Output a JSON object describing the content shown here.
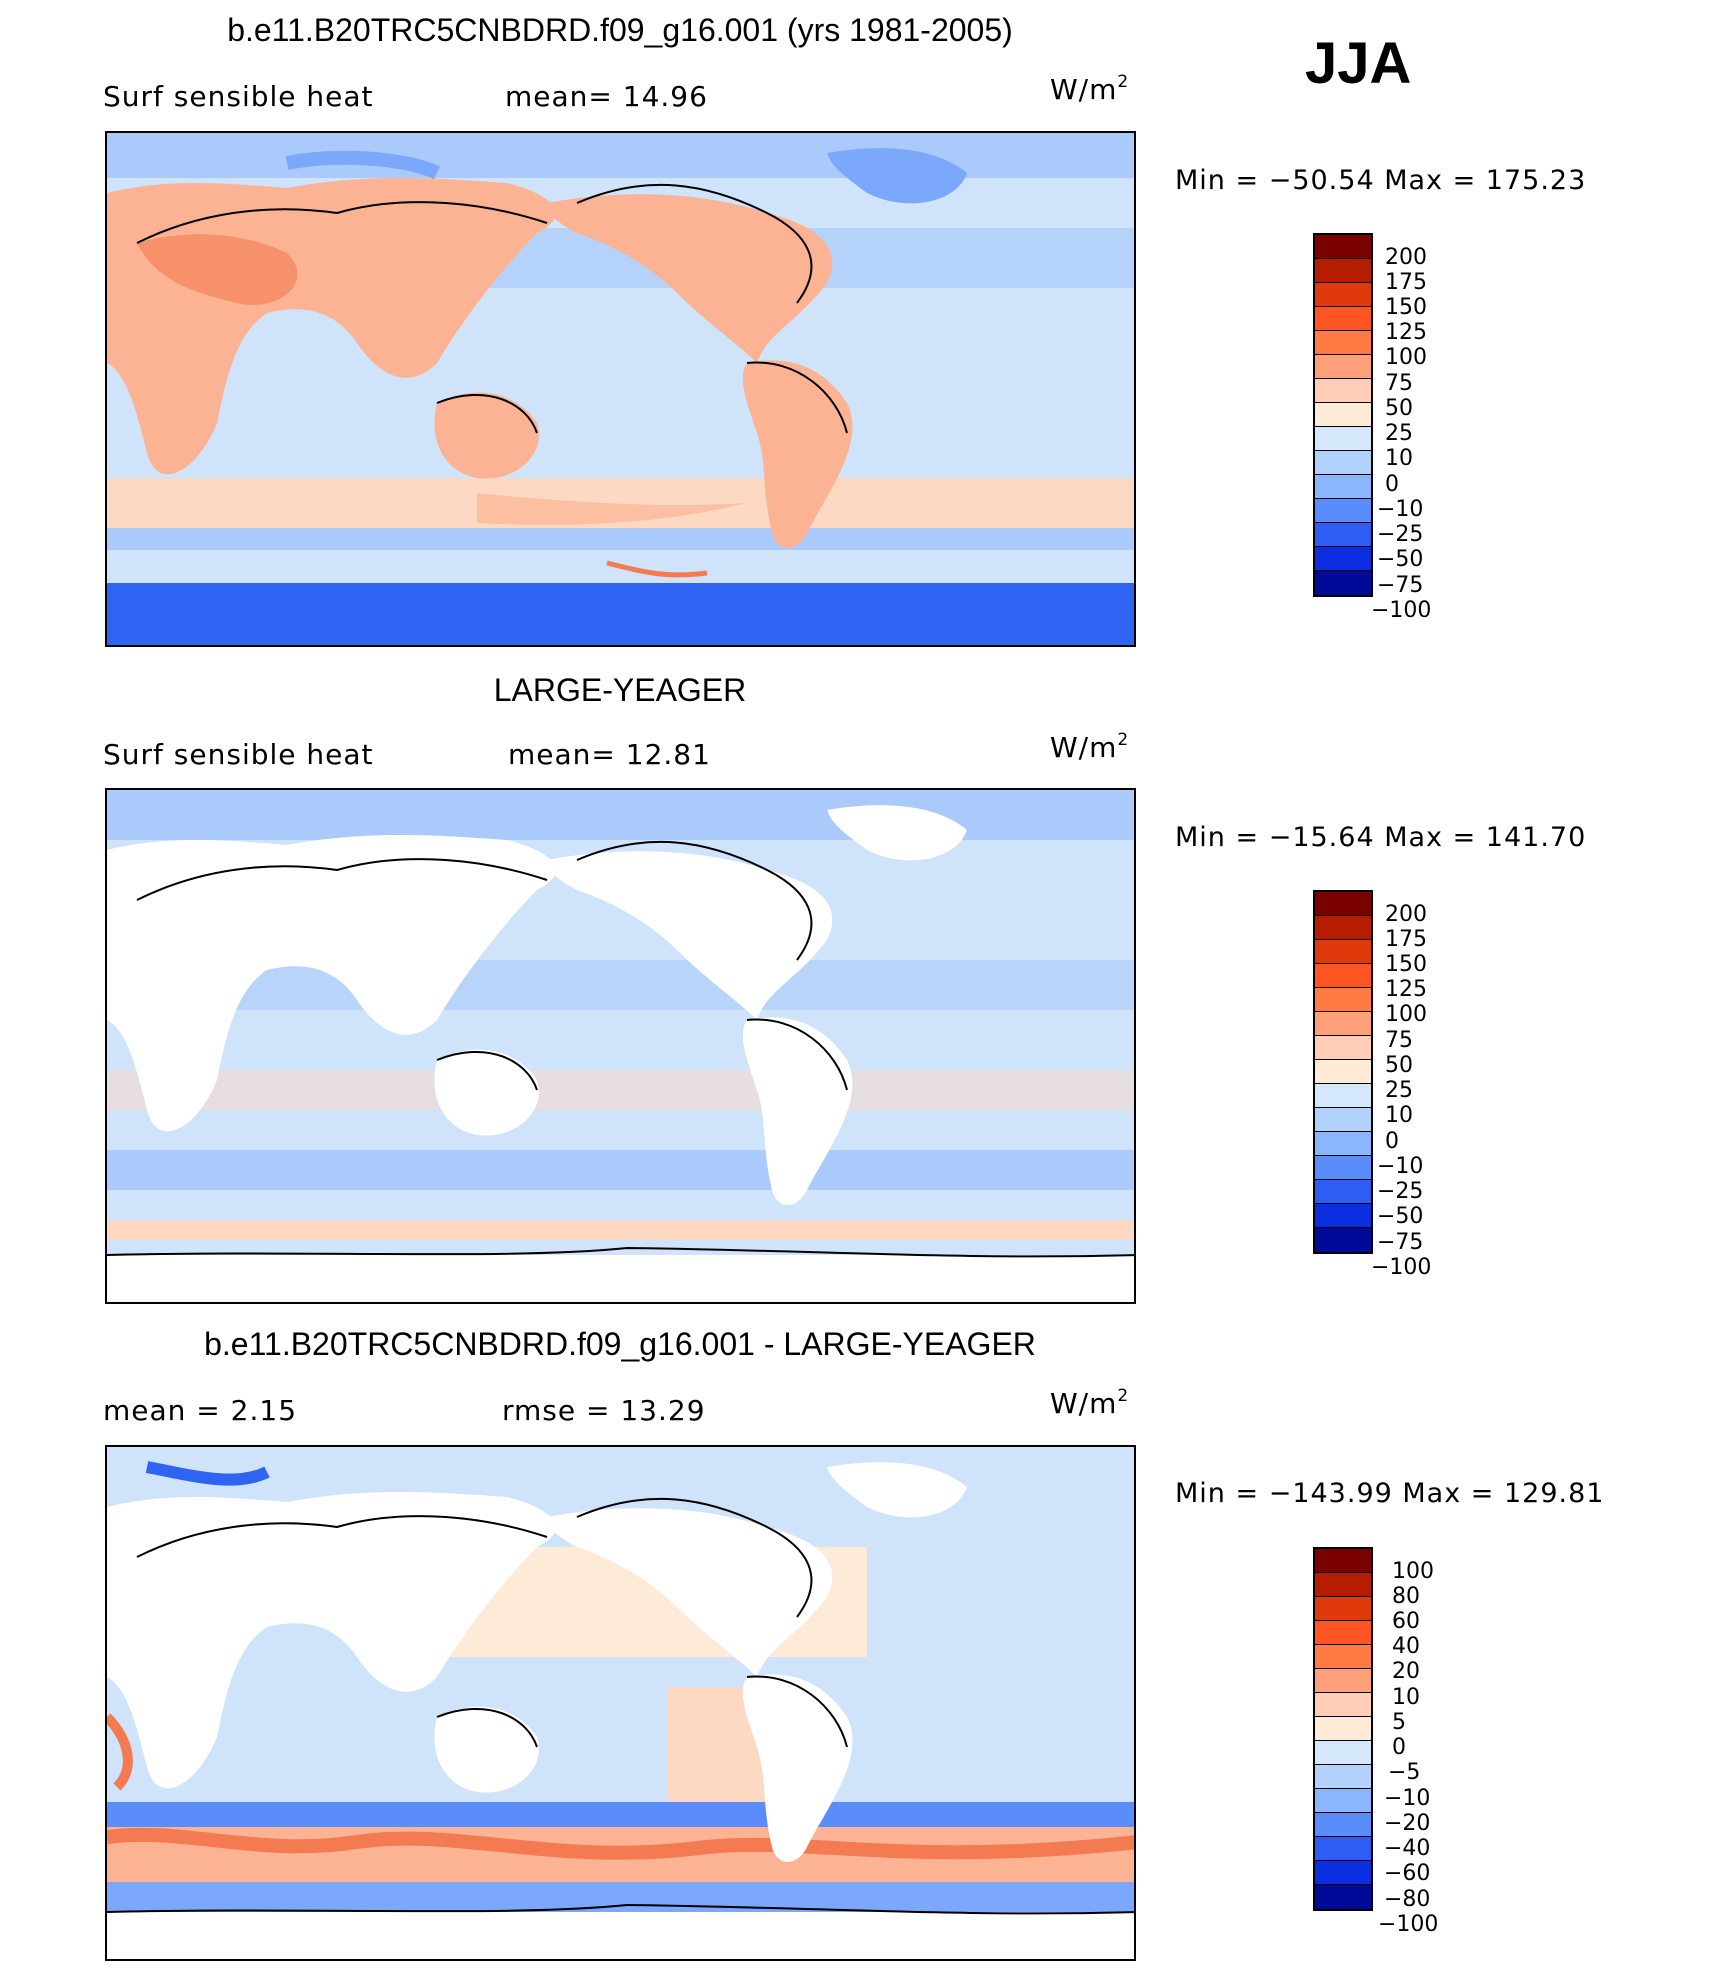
{
  "season": "JJA",
  "panels": [
    {
      "title": "b.e11.B20TRC5CNBDRD.f09_g16.001 (yrs 1981-2005)",
      "left_text": "Surf sensible heat",
      "mid_text": "mean=  14.96",
      "units_base": "W/m",
      "units_exp": "2",
      "minmax": "Min = −50.54 Max = 175.23",
      "colorbar_labels": [
        "200",
        "175",
        "150",
        "125",
        "100",
        "75",
        "50",
        "25",
        "10",
        "0",
        "−10",
        "−25",
        "−50",
        "−75",
        "−100"
      ]
    },
    {
      "title": "LARGE-YEAGER",
      "left_text": "Surf sensible heat",
      "mid_text": "mean=  12.81",
      "units_base": "W/m",
      "units_exp": "2",
      "minmax": "Min = −15.64 Max = 141.70",
      "colorbar_labels": [
        "200",
        "175",
        "150",
        "125",
        "100",
        "75",
        "50",
        "25",
        "10",
        "0",
        "−10",
        "−25",
        "−50",
        "−75",
        "−100"
      ]
    },
    {
      "title": "b.e11.B20TRC5CNBDRD.f09_g16.001 - LARGE-YEAGER",
      "left_text": "mean =    2.15",
      "mid_text": "rmse =   13.29",
      "units_base": "W/m",
      "units_exp": "2",
      "minmax": "Min = −143.99 Max = 129.81",
      "colorbar_labels": [
        "100",
        "80",
        "60",
        "40",
        "20",
        "10",
        "5",
        "0",
        "−5",
        "−10",
        "−20",
        "−40",
        "−60",
        "−80",
        "−100"
      ]
    }
  ],
  "colors": {
    "colorbar": [
      "#7b0000",
      "#b51c00",
      "#e03a0c",
      "#ff5522",
      "#ff7a45",
      "#ffa07a",
      "#ffcdb5",
      "#fdebd8",
      "#d5e7fb",
      "#b3d2fb",
      "#8ab6fb",
      "#5a8cfb",
      "#2e5cf5",
      "#0a2ee0",
      "#000a98"
    ],
    "land_white": "#ffffff",
    "ocean_light": "#cfe3fb",
    "ocean_mid": "#a9cafb",
    "ocean_blue": "#7ba8fb",
    "deep_blue": "#2f63f2",
    "warm_light": "#fdd9c4",
    "warm_mid": "#fbb394",
    "warm_strong": "#f47a52"
  }
}
